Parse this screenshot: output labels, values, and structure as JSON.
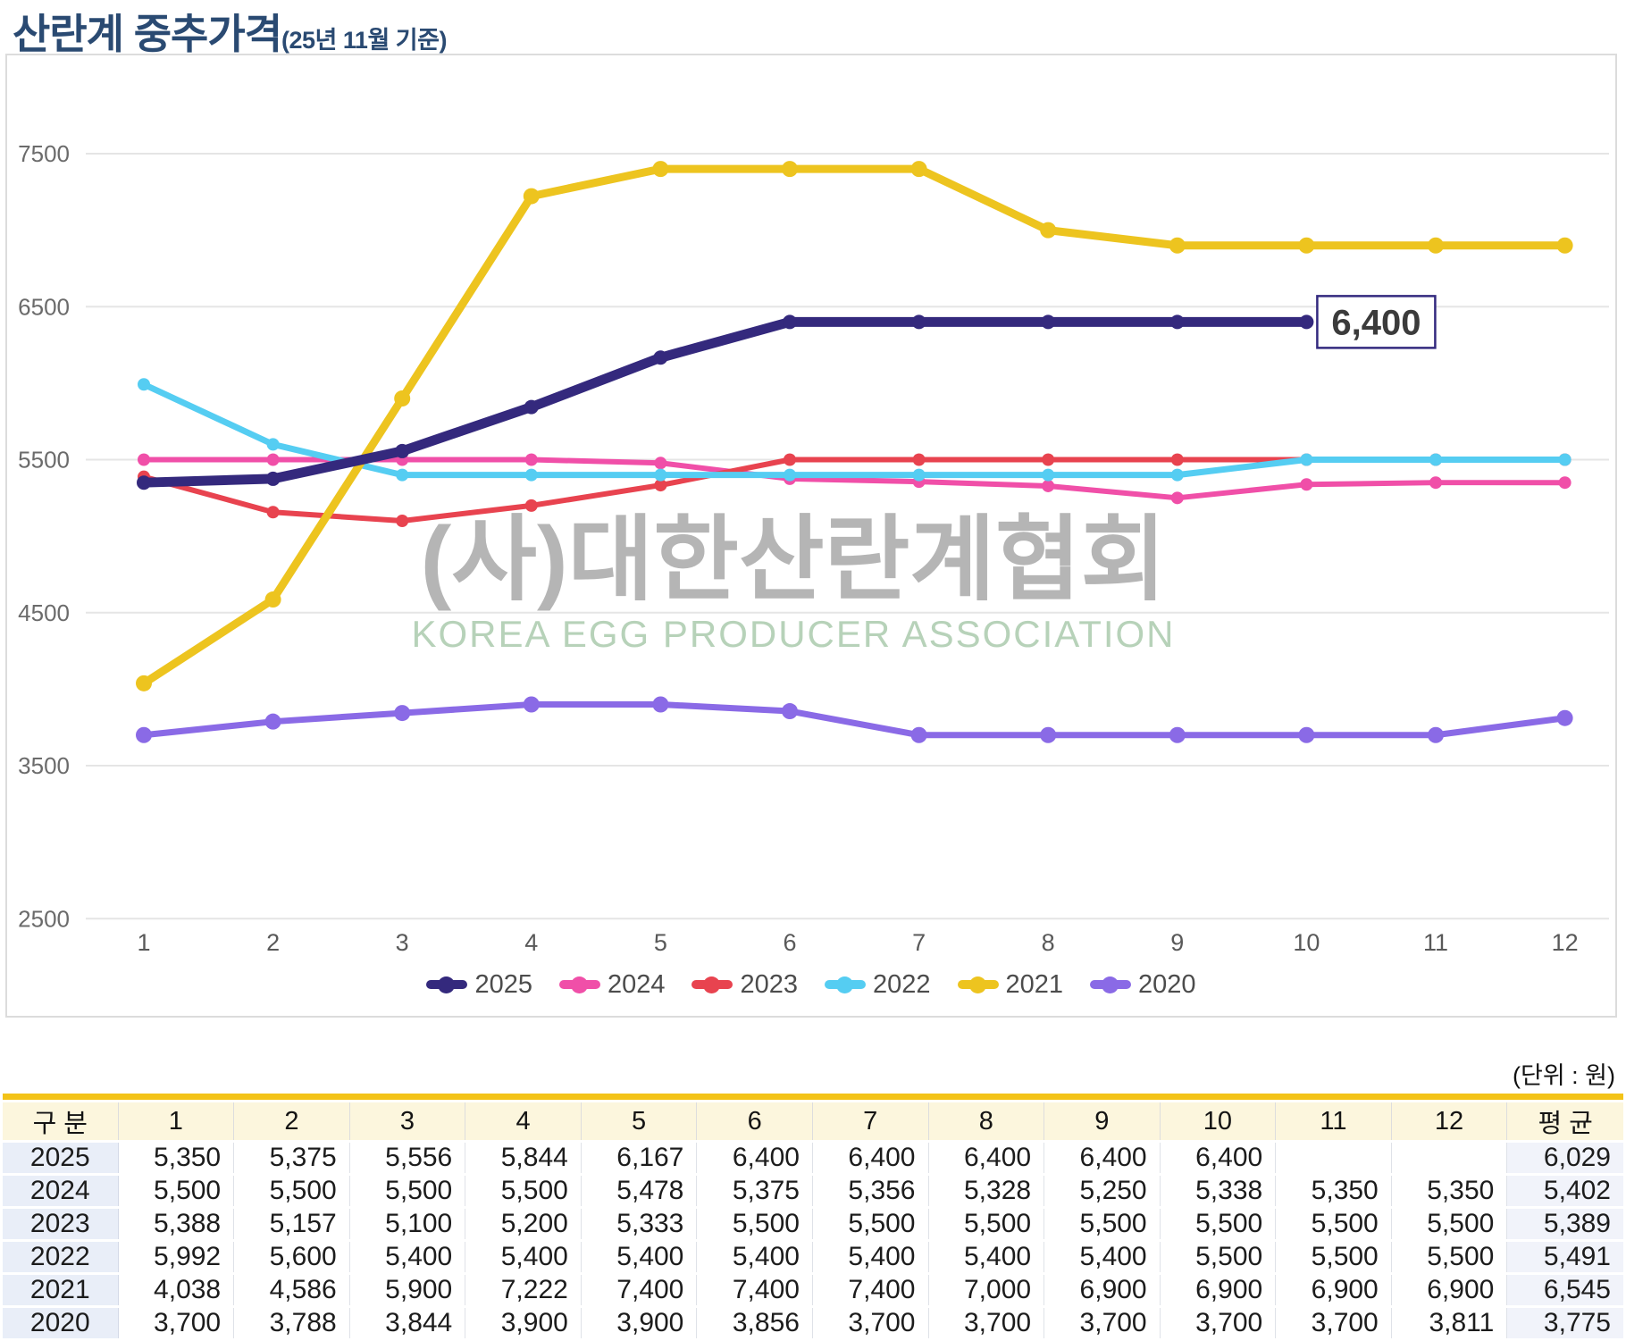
{
  "page": {
    "title": "산란계 중추가격",
    "subtitle": "(25년 11월 기준)",
    "unit_note": "(단위 : 원)"
  },
  "chart_data": {
    "type": "line",
    "x": [
      1,
      2,
      3,
      4,
      5,
      6,
      7,
      8,
      9,
      10,
      11,
      12
    ],
    "xlabel": "",
    "ylabel": "",
    "ylim": [
      2500,
      7800
    ],
    "yticks": [
      7500,
      6500,
      5500,
      4500,
      3500,
      2500
    ],
    "grid": "horizontal",
    "legend_position": "bottom",
    "series": [
      {
        "name": "2025",
        "color": "#34297d",
        "line_width": 11,
        "dot_radius": 8,
        "values": [
          5350,
          5375,
          5556,
          5844,
          6167,
          6400,
          6400,
          6400,
          6400,
          6400,
          null,
          null
        ]
      },
      {
        "name": "2024",
        "color": "#f04fa8",
        "line_width": 6,
        "dot_radius": 7,
        "values": [
          5500,
          5500,
          5500,
          5500,
          5478,
          5375,
          5356,
          5328,
          5250,
          5338,
          5350,
          5350
        ]
      },
      {
        "name": "2023",
        "color": "#e8434f",
        "line_width": 6,
        "dot_radius": 7,
        "values": [
          5388,
          5157,
          5100,
          5200,
          5333,
          5500,
          5500,
          5500,
          5500,
          5500,
          5500,
          5500
        ]
      },
      {
        "name": "2022",
        "color": "#55cdf2",
        "line_width": 7,
        "dot_radius": 7,
        "values": [
          5992,
          5600,
          5400,
          5400,
          5400,
          5400,
          5400,
          5400,
          5400,
          5500,
          5500,
          5500
        ]
      },
      {
        "name": "2021",
        "color": "#edc41f",
        "line_width": 9,
        "dot_radius": 9,
        "values": [
          4038,
          4586,
          5900,
          7222,
          7400,
          7400,
          7400,
          7000,
          6900,
          6900,
          6900,
          6900
        ]
      },
      {
        "name": "2020",
        "color": "#8a6ae6",
        "line_width": 7,
        "dot_radius": 9,
        "values": [
          3700,
          3788,
          3844,
          3900,
          3900,
          3856,
          3700,
          3700,
          3700,
          3700,
          3700,
          3811
        ]
      }
    ],
    "draw_order": [
      "2020",
      "2024",
      "2023",
      "2022",
      "2021",
      "2025"
    ],
    "annotation": {
      "label": "6,400",
      "series": "2025",
      "month": 10,
      "box_border": "#33297e",
      "box_fill": "#ffffff",
      "text_color": "#3b3b3b"
    },
    "watermark": {
      "line1": "(사)대한산란계협회",
      "line2": "KOREA EGG PRODUCER ASSOCIATION",
      "line1_color": "#b5b5b5",
      "line2_color": "#b7d2b9"
    }
  },
  "table": {
    "columns": [
      "구 분",
      "1",
      "2",
      "3",
      "4",
      "5",
      "6",
      "7",
      "8",
      "9",
      "10",
      "11",
      "12",
      "평 균"
    ],
    "rows": [
      {
        "label": "2025",
        "values": [
          "5,350",
          "5,375",
          "5,556",
          "5,844",
          "6,167",
          "6,400",
          "6,400",
          "6,400",
          "6,400",
          "6,400",
          "",
          ""
        ],
        "avg": "6,029"
      },
      {
        "label": "2024",
        "values": [
          "5,500",
          "5,500",
          "5,500",
          "5,500",
          "5,478",
          "5,375",
          "5,356",
          "5,328",
          "5,250",
          "5,338",
          "5,350",
          "5,350"
        ],
        "avg": "5,402"
      },
      {
        "label": "2023",
        "values": [
          "5,388",
          "5,157",
          "5,100",
          "5,200",
          "5,333",
          "5,500",
          "5,500",
          "5,500",
          "5,500",
          "5,500",
          "5,500",
          "5,500"
        ],
        "avg": "5,389"
      },
      {
        "label": "2022",
        "values": [
          "5,992",
          "5,600",
          "5,400",
          "5,400",
          "5,400",
          "5,400",
          "5,400",
          "5,400",
          "5,400",
          "5,500",
          "5,500",
          "5,500"
        ],
        "avg": "5,491"
      },
      {
        "label": "2021",
        "values": [
          "4,038",
          "4,586",
          "5,900",
          "7,222",
          "7,400",
          "7,400",
          "7,400",
          "7,000",
          "6,900",
          "6,900",
          "6,900",
          "6,900"
        ],
        "avg": "6,545"
      },
      {
        "label": "2020",
        "values": [
          "3,700",
          "3,788",
          "3,844",
          "3,900",
          "3,900",
          "3,856",
          "3,700",
          "3,700",
          "3,700",
          "3,700",
          "3,700",
          "3,811"
        ],
        "avg": "3,775"
      }
    ]
  }
}
